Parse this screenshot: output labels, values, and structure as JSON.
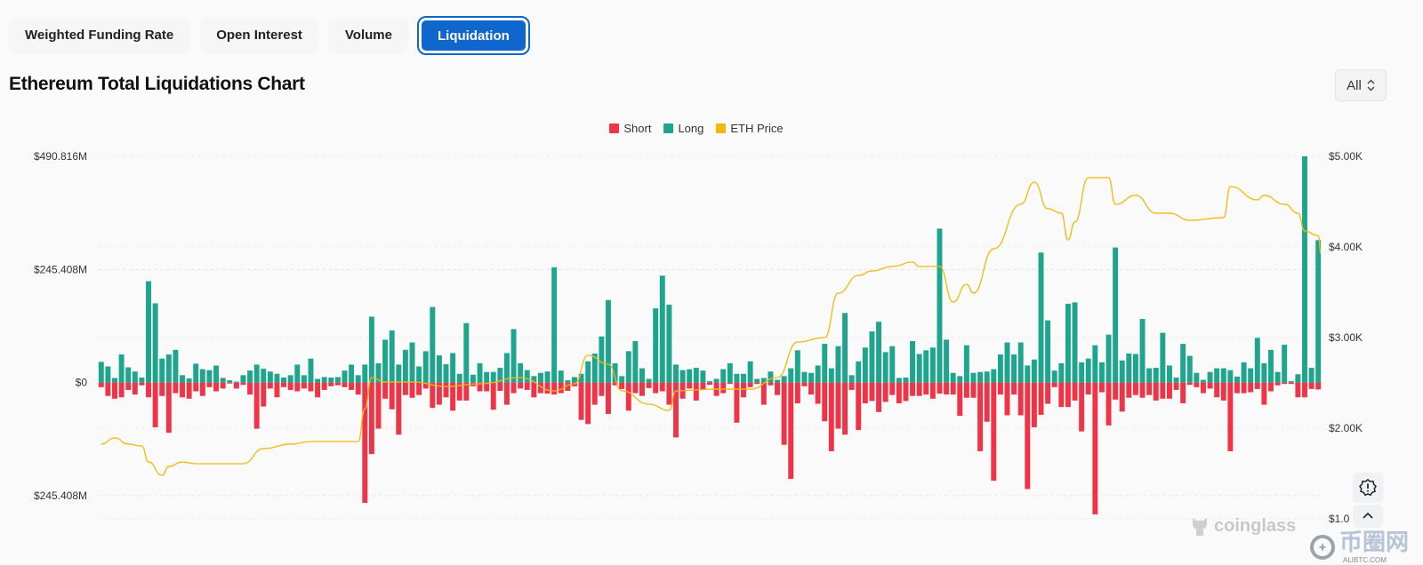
{
  "tabs": [
    {
      "label": "Weighted Funding Rate"
    },
    {
      "label": "Open Interest"
    },
    {
      "label": "Volume"
    },
    {
      "label": "Liquidation",
      "active": true
    }
  ],
  "title": "Ethereum Total Liquidations Chart",
  "range_select": {
    "value": "All"
  },
  "watermark": {
    "brand": "coinglass",
    "site_cn": "币圈网",
    "site_en": "ALIBTC.COM"
  },
  "colors": {
    "short": "#ef3447",
    "long": "#1fa58d",
    "price": "#f0b90b",
    "accent": "#0f66cc"
  },
  "chart_data": {
    "type": "bar",
    "title": "Ethereum Total Liquidations Chart",
    "legend": [
      "Short",
      "Long",
      "ETH Price"
    ],
    "legend_position": "top-center",
    "left_axis": {
      "ticks": [
        "$490.816M",
        "$245.408M",
        "$0",
        "$245.408M"
      ],
      "tick_values": [
        490.816,
        245.408,
        0,
        -245.408
      ],
      "ylim": [
        -295.6,
        490.816
      ],
      "unit": "USD millions"
    },
    "right_axis": {
      "ticks": [
        "$5.00K",
        "$4.00K",
        "$3.00K",
        "$2.00K",
        "$1.0"
      ],
      "tick_values": [
        5000,
        4000,
        3000,
        2000,
        1000
      ],
      "ylim": [
        1000,
        5000
      ],
      "unit": "USD"
    },
    "grid": true,
    "series": [
      {
        "name": "Long",
        "values": [
          45,
          35,
          10,
          61,
          33,
          24,
          11,
          220,
          172,
          52,
          61,
          71,
          16,
          9,
          41,
          29,
          27,
          37,
          10,
          5,
          2,
          16,
          26,
          39,
          30,
          24,
          19,
          11,
          16,
          39,
          16,
          52,
          8,
          12,
          11,
          12,
          26,
          39,
          16,
          39,
          143,
          42,
          93,
          113,
          39,
          71,
          87,
          35,
          68,
          164,
          59,
          40,
          64,
          19,
          129,
          17,
          42,
          23,
          23,
          32,
          64,
          116,
          42,
          27,
          14,
          21,
          24,
          250,
          26,
          5,
          12,
          19,
          46,
          63,
          100,
          179,
          42,
          14,
          68,
          90,
          31,
          8,
          161,
          232,
          169,
          39,
          27,
          29,
          32,
          26,
          3,
          8,
          29,
          42,
          19,
          19,
          46,
          8,
          10,
          24,
          6,
          14,
          31,
          70,
          23,
          21,
          37,
          84,
          31,
          79,
          151,
          16,
          46,
          76,
          111,
          132,
          66,
          79,
          10,
          11,
          90,
          62,
          70,
          76,
          334,
          93,
          21,
          14,
          81,
          21,
          23,
          24,
          29,
          61,
          87,
          61,
          87,
          37,
          50,
          282,
          135,
          26,
          42,
          171,
          174,
          44,
          52,
          81,
          44,
          104,
          293,
          48,
          63,
          62,
          138,
          31,
          32,
          108,
          37,
          11,
          84,
          58,
          21,
          6,
          23,
          31,
          31,
          27,
          13,
          44,
          31,
          97,
          42,
          71,
          23,
          82,
          3,
          18,
          491,
          32,
          309
        ]
      },
      {
        "name": "Short",
        "values": [
          10,
          29,
          35,
          32,
          16,
          26,
          6,
          32,
          97,
          29,
          109,
          23,
          32,
          35,
          19,
          29,
          10,
          19,
          13,
          2,
          13,
          5,
          26,
          100,
          52,
          13,
          32,
          10,
          16,
          19,
          13,
          19,
          32,
          16,
          8,
          6,
          10,
          16,
          26,
          261,
          155,
          100,
          35,
          58,
          113,
          27,
          33,
          27,
          13,
          55,
          48,
          32,
          61,
          39,
          39,
          8,
          19,
          19,
          59,
          18,
          48,
          23,
          13,
          16,
          32,
          23,
          24,
          26,
          23,
          18,
          8,
          81,
          90,
          48,
          29,
          68,
          6,
          14,
          61,
          23,
          29,
          12,
          23,
          19,
          48,
          119,
          35,
          13,
          39,
          16,
          5,
          29,
          23,
          3,
          87,
          32,
          10,
          3,
          48,
          6,
          27,
          135,
          209,
          45,
          8,
          26,
          46,
          84,
          149,
          100,
          113,
          16,
          103,
          45,
          40,
          64,
          42,
          27,
          45,
          40,
          29,
          29,
          26,
          35,
          24,
          26,
          26,
          72,
          33,
          33,
          149,
          85,
          213,
          26,
          71,
          26,
          71,
          231,
          97,
          70,
          46,
          10,
          53,
          53,
          39,
          106,
          26,
          286,
          21,
          93,
          37,
          63,
          33,
          27,
          33,
          27,
          39,
          35,
          35,
          16,
          45,
          5,
          10,
          23,
          13,
          32,
          39,
          149,
          23,
          23,
          21,
          14,
          48,
          19,
          6,
          3,
          3,
          32,
          32,
          14,
          15
        ]
      },
      {
        "name": "ETH Price",
        "points": [
          [
            0,
            1824
          ],
          [
            2,
            1892
          ],
          [
            4,
            1824
          ],
          [
            6,
            1804
          ],
          [
            7,
            1627
          ],
          [
            9,
            1480
          ],
          [
            10,
            1578
          ],
          [
            12,
            1627
          ],
          [
            14,
            1608
          ],
          [
            21,
            1608
          ],
          [
            24,
            1775
          ],
          [
            28,
            1824
          ],
          [
            31,
            1853
          ],
          [
            38,
            1853
          ],
          [
            39,
            2216
          ],
          [
            40,
            2559
          ],
          [
            42,
            2510
          ],
          [
            46,
            2510
          ],
          [
            51,
            2461
          ],
          [
            56,
            2490
          ],
          [
            62,
            2559
          ],
          [
            67,
            2412
          ],
          [
            70,
            2490
          ],
          [
            72,
            2804
          ],
          [
            75,
            2706
          ],
          [
            77,
            2412
          ],
          [
            81,
            2265
          ],
          [
            84,
            2196
          ],
          [
            85,
            2412
          ],
          [
            91,
            2431
          ],
          [
            96,
            2431
          ],
          [
            100,
            2559
          ],
          [
            103,
            2951
          ],
          [
            107,
            3000
          ],
          [
            109,
            3490
          ],
          [
            112,
            3686
          ],
          [
            114,
            3735
          ],
          [
            117,
            3784
          ],
          [
            120,
            3833
          ],
          [
            121,
            3784
          ],
          [
            124,
            3784
          ],
          [
            126,
            3392
          ],
          [
            128,
            3588
          ],
          [
            129,
            3490
          ],
          [
            132,
            3980
          ],
          [
            136,
            4471
          ],
          [
            138,
            4716
          ],
          [
            140,
            4422
          ],
          [
            142,
            4373
          ],
          [
            143,
            4078
          ],
          [
            144,
            4275
          ],
          [
            146,
            4765
          ],
          [
            149,
            4765
          ],
          [
            150,
            4471
          ],
          [
            153,
            4569
          ],
          [
            156,
            4373
          ],
          [
            158,
            4373
          ],
          [
            161,
            4294
          ],
          [
            166,
            4324
          ],
          [
            167,
            4667
          ],
          [
            171,
            4520
          ],
          [
            172,
            4569
          ],
          [
            175,
            4471
          ],
          [
            177,
            4373
          ],
          [
            178,
            4176
          ],
          [
            180,
            4127
          ],
          [
            180.4,
            3931
          ]
        ]
      }
    ]
  }
}
